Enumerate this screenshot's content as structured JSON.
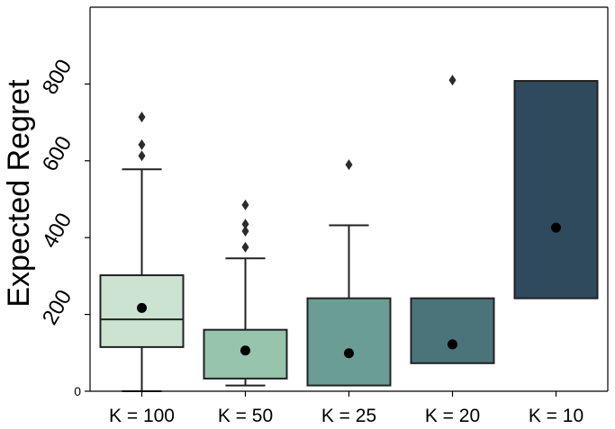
{
  "chart_data": {
    "type": "box",
    "title": "",
    "xlabel": "",
    "ylabel": "Expected Regret",
    "ylim": [
      0,
      1000
    ],
    "yticks": [
      0,
      200,
      400,
      600,
      800
    ],
    "categories": [
      "K = 100",
      "K = 50",
      "K = 25",
      "K = 20",
      "K = 10"
    ],
    "boxes": [
      {
        "label": "K = 100",
        "color": "#cce3d2",
        "q1": 115,
        "median": 187,
        "q3": 302,
        "whisker_low": 0,
        "whisker_high": 578,
        "mean": 217,
        "outliers": [
          613,
          642,
          714
        ]
      },
      {
        "label": "K = 50",
        "color": "#96c4ac",
        "q1": 33,
        "median": 33,
        "q3": 160,
        "whisker_low": 15,
        "whisker_high": 346,
        "mean": 106,
        "outliers": [
          375,
          417,
          435,
          485
        ]
      },
      {
        "label": "K = 25",
        "color": "#6a9e94",
        "q1": 15,
        "median": 15,
        "q3": 242,
        "whisker_low": 15,
        "whisker_high": 432,
        "mean": 99,
        "outliers": [
          590
        ]
      },
      {
        "label": "K = 20",
        "color": "#4a7479",
        "q1": 73,
        "median": 73,
        "q3": 242,
        "whisker_low": 73,
        "whisker_high": 242,
        "mean": 122,
        "outliers": [
          810
        ]
      },
      {
        "label": "K = 10",
        "color": "#2f4a5c",
        "q1": 242,
        "median": 242,
        "q3": 808,
        "whisker_low": 242,
        "whisker_high": 808,
        "mean": 426,
        "outliers": []
      }
    ]
  }
}
